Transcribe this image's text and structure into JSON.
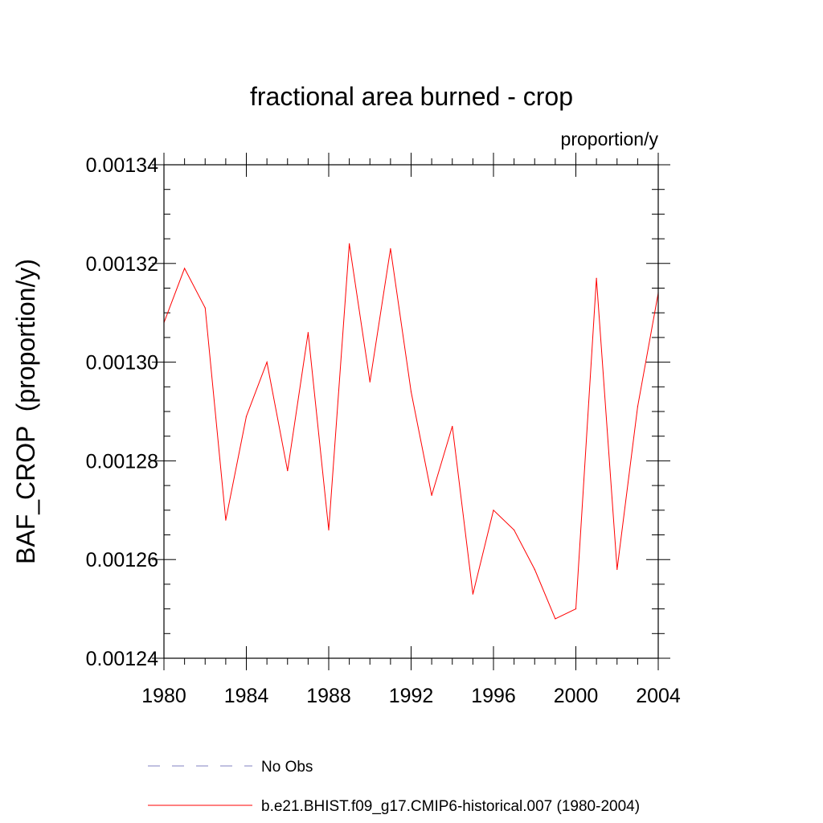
{
  "chart_data": {
    "type": "line",
    "title": "fractional area burned - crop",
    "units_label": "proportion/y",
    "xlabel": "",
    "ylabel": "BAF_CROP  (proportion/y)",
    "xlim": [
      1980,
      2004
    ],
    "ylim": [
      0.00124,
      0.00134
    ],
    "x_ticks": [
      1980,
      1984,
      1988,
      1992,
      1996,
      2000,
      2004
    ],
    "x_tick_labels": [
      "1980",
      "1984",
      "1988",
      "1992",
      "1996",
      "2000",
      "2004"
    ],
    "y_ticks": [
      0.00124,
      0.00126,
      0.00128,
      0.0013,
      0.00132,
      0.00134
    ],
    "y_tick_labels": [
      "0.00124",
      "0.00126",
      "0.00128",
      "0.00130",
      "0.00132",
      "0.00134"
    ],
    "grid": false,
    "series": [
      {
        "name": "b.e21.BHIST.f09_g17.CMIP6-historical.007 (1980-2004)",
        "color": "#ff0000",
        "style": "solid",
        "x": [
          1980,
          1981,
          1982,
          1983,
          1984,
          1985,
          1986,
          1987,
          1988,
          1989,
          1990,
          1991,
          1992,
          1993,
          1994,
          1995,
          1996,
          1997,
          1998,
          1999,
          2000,
          2001,
          2002,
          2003,
          2004
        ],
        "values": [
          0.001308,
          0.001319,
          0.001311,
          0.001268,
          0.001289,
          0.0013,
          0.001278,
          0.001306,
          0.001266,
          0.001324,
          0.001296,
          0.001323,
          0.001294,
          0.001273,
          0.001287,
          0.001253,
          0.00127,
          0.001266,
          0.001258,
          0.001248,
          0.00125,
          0.001317,
          0.001258,
          0.001291,
          0.001314
        ]
      }
    ],
    "legend": [
      {
        "label": "No Obs",
        "color": "#8080c0",
        "style": "dashed"
      },
      {
        "label": "b.e21.BHIST.f09_g17.CMIP6-historical.007 (1980-2004)",
        "color": "#ff0000",
        "style": "solid"
      }
    ]
  }
}
